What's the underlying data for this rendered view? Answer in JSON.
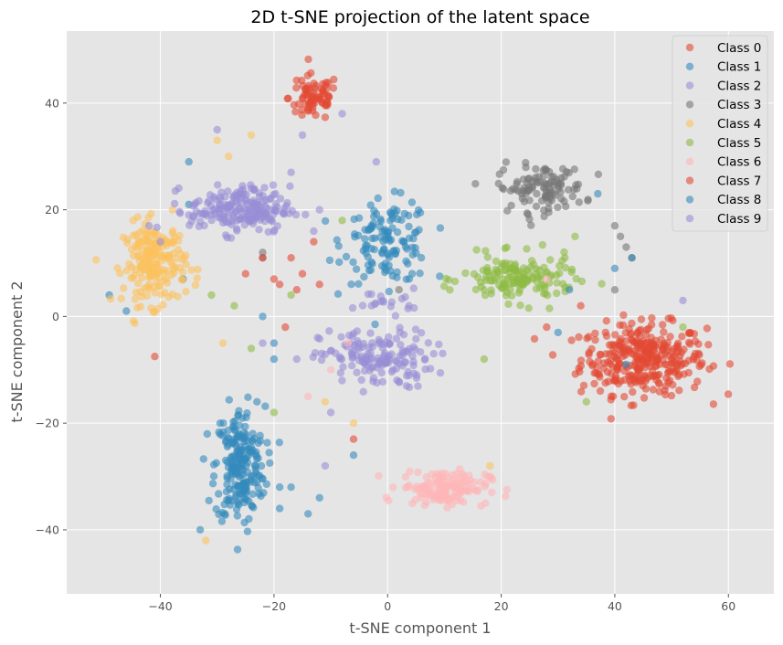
{
  "chart_data": {
    "type": "scatter",
    "title": "2D t-SNE projection of the latent space",
    "xlabel": "t-SNE component 1",
    "ylabel": "t-SNE component 2",
    "xlim": [
      -56.5,
      68
    ],
    "ylim": [
      -52,
      53.5
    ],
    "xticks": [
      -40,
      -20,
      0,
      20,
      40,
      60
    ],
    "yticks": [
      -40,
      -20,
      0,
      20,
      40
    ],
    "xtick_labels": [
      "−40",
      "−20",
      "0",
      "20",
      "40",
      "60"
    ],
    "ytick_labels": [
      "−40",
      "−20",
      "0",
      "20",
      "40"
    ],
    "grid": true,
    "legend_position": "top-right",
    "point_alpha": 0.6,
    "background_color": "#e5e5e5",
    "grid_color": "#ffffff",
    "series": [
      {
        "name": "Class 0",
        "color": "#e24a33",
        "clusters": [
          {
            "cx": 45,
            "cy": -8,
            "sx": 10,
            "sy": 6,
            "n": 330
          },
          {
            "cx": -13,
            "cy": 41,
            "sx": 4,
            "sy": 4,
            "n": 75
          }
        ],
        "points": [
          [
            -41,
            -7.5
          ],
          [
            -17,
            11
          ],
          [
            -20,
            7
          ],
          [
            -12,
            6
          ],
          [
            -18,
            -2
          ],
          [
            28,
            -2
          ],
          [
            -16,
            5
          ]
        ]
      },
      {
        "name": "Class 1",
        "color": "#348abd",
        "clusters": [
          {
            "cx": 0,
            "cy": 14,
            "sx": 7,
            "sy": 7,
            "n": 130
          },
          {
            "cx": -26,
            "cy": -28,
            "sx": 4,
            "sy": 10,
            "n": 220
          }
        ],
        "points": [
          [
            -49,
            4
          ],
          [
            -36,
            7
          ],
          [
            -22,
            0
          ],
          [
            -20,
            -5
          ],
          [
            -17,
            -32
          ],
          [
            -23,
            -16
          ],
          [
            -35,
            29
          ],
          [
            37,
            23
          ],
          [
            -6,
            -26
          ]
        ]
      },
      {
        "name": "Class 2",
        "color": "#988ed5",
        "clusters": [
          {
            "cx": -2,
            "cy": -8,
            "sx": 9,
            "sy": 5,
            "n": 150
          },
          {
            "cx": 0,
            "cy": 3,
            "sx": 5,
            "sy": 2,
            "n": 20
          }
        ],
        "points": [
          [
            -30,
            35
          ],
          [
            -15,
            34
          ],
          [
            -8,
            38
          ],
          [
            -2,
            29
          ],
          [
            -12,
            20
          ],
          [
            -10,
            -18
          ],
          [
            -11,
            -28
          ]
        ]
      },
      {
        "name": "Class 3",
        "color": "#777777",
        "clusters": [
          {
            "cx": 27,
            "cy": 24,
            "sx": 7,
            "sy": 4,
            "n": 110
          }
        ],
        "points": [
          [
            41,
            15
          ],
          [
            43,
            11
          ],
          [
            40,
            5
          ],
          [
            -22,
            12
          ],
          [
            -22,
            11
          ],
          [
            2,
            5
          ],
          [
            40,
            17
          ],
          [
            42,
            13
          ]
        ]
      },
      {
        "name": "Class 4",
        "color": "#fbc15e",
        "clusters": [
          {
            "cx": -41,
            "cy": 10,
            "sx": 5,
            "sy": 7,
            "n": 200
          }
        ],
        "points": [
          [
            -30,
            33
          ],
          [
            -24,
            34
          ],
          [
            -29,
            -5
          ],
          [
            -11,
            -16
          ],
          [
            -6,
            -20
          ],
          [
            -32,
            -42
          ],
          [
            -28,
            30
          ],
          [
            18,
            -28
          ]
        ]
      },
      {
        "name": "Class 5",
        "color": "#8eba42",
        "clusters": [
          {
            "cx": 23,
            "cy": 7,
            "sx": 9,
            "sy": 4,
            "n": 150
          }
        ],
        "points": [
          [
            -31,
            4
          ],
          [
            -27,
            2
          ],
          [
            -17,
            4
          ],
          [
            -24,
            -6
          ],
          [
            -20,
            -18
          ],
          [
            -8,
            18
          ],
          [
            17,
            -8
          ],
          [
            33,
            15
          ],
          [
            35,
            -16
          ],
          [
            52,
            -2
          ]
        ]
      },
      {
        "name": "Class 6",
        "color": "#ffb5b8",
        "clusters": [
          {
            "cx": 10,
            "cy": -32,
            "sx": 7,
            "sy": 3,
            "n": 140
          }
        ],
        "points": [
          [
            -14,
            -15
          ],
          [
            -10,
            -10
          ],
          [
            28,
            7
          ],
          [
            -7,
            -5
          ]
        ]
      },
      {
        "name": "Class 7",
        "color": "#e24a33",
        "clusters": [],
        "points": [
          [
            -19,
            6
          ],
          [
            -22,
            11
          ],
          [
            -13,
            14
          ],
          [
            34,
            2
          ],
          [
            -15,
            8
          ],
          [
            -25,
            8
          ],
          [
            -6,
            -23
          ]
        ]
      },
      {
        "name": "Class 8",
        "color": "#348abd",
        "clusters": [],
        "points": [
          [
            -20,
            -8
          ],
          [
            -19,
            -32
          ],
          [
            -12,
            -34
          ],
          [
            -19,
            -36
          ],
          [
            -14,
            -37
          ],
          [
            -33,
            -40
          ],
          [
            30,
            -3
          ],
          [
            42,
            -9
          ],
          [
            40,
            9
          ],
          [
            -46,
            1
          ],
          [
            43,
            11
          ],
          [
            32,
            5
          ],
          [
            -35,
            21
          ]
        ]
      },
      {
        "name": "Class 9",
        "color": "#988ed5",
        "clusters": [
          {
            "cx": -26,
            "cy": 20,
            "sx": 8,
            "sy": 4,
            "n": 200
          }
        ],
        "points": [
          [
            -42,
            17
          ],
          [
            -40,
            14
          ],
          [
            -35,
            19
          ],
          [
            -17,
            27
          ],
          [
            -24,
            24
          ],
          [
            -13,
            16
          ],
          [
            -22,
            -5
          ],
          [
            52,
            3
          ],
          [
            -16,
            -8
          ]
        ]
      }
    ]
  }
}
